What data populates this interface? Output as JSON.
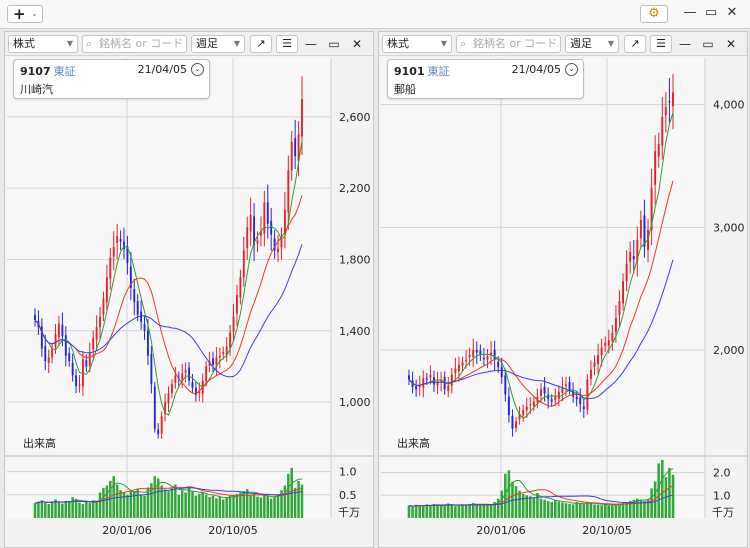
{
  "app": {
    "add_label": "+",
    "add_caret": "⌄",
    "settings_icon": "gear-icon",
    "minimize": "—",
    "maximize": "▭",
    "close": "✕"
  },
  "panels": [
    {
      "toolbar": {
        "type": "株式",
        "search_placeholder": "銘柄名 or コード",
        "period": "週足",
        "expand": "↗",
        "menu": "☰",
        "minimize": "—",
        "maximize": "▭",
        "close": "✕"
      },
      "info": {
        "code": "9107",
        "exchange": "東証",
        "date": "21/04/05",
        "name": "川崎汽"
      },
      "volume_label": "出来高",
      "volume_unit": "千万"
    },
    {
      "toolbar": {
        "type": "株式",
        "search_placeholder": "銘柄名 or コード",
        "period": "週足",
        "expand": "↗",
        "menu": "☰",
        "minimize": "—",
        "maximize": "▭",
        "close": "✕"
      },
      "info": {
        "code": "9101",
        "exchange": "東証",
        "date": "21/04/05",
        "name": "郵船"
      },
      "volume_label": "出来高",
      "volume_unit": "千万"
    }
  ],
  "chart_data": [
    {
      "type": "candlestick",
      "stock_code": "9107",
      "name": "川崎汽",
      "period": "weekly",
      "date_ticks": [
        "20/01/06",
        "20/10/05"
      ],
      "y_ticks": [
        1000,
        1400,
        1800,
        2200,
        2600
      ],
      "ylim": [
        720,
        2930
      ],
      "volume_ticks": [
        0.5,
        1.0
      ],
      "volume_ylim": [
        0,
        1.25
      ],
      "volume_unit": "千万",
      "up_color": "#e8202a",
      "down_color": "#2326d8",
      "ma_colors": [
        "#2f9e2f",
        "#e83a2a",
        "#3d3ddb"
      ],
      "closes": [
        1460,
        1420,
        1300,
        1230,
        1250,
        1300,
        1380,
        1440,
        1370,
        1260,
        1230,
        1150,
        1090,
        1100,
        1240,
        1200,
        1280,
        1360,
        1420,
        1480,
        1580,
        1700,
        1810,
        1870,
        1930,
        1900,
        1860,
        1780,
        1640,
        1560,
        1490,
        1450,
        1400,
        1260,
        1100,
        850,
        820,
        920,
        1000,
        1050,
        1100,
        1150,
        1130,
        1160,
        1180,
        1120,
        1080,
        1040,
        1060,
        1120,
        1200,
        1230,
        1210,
        1250,
        1260,
        1280,
        1310,
        1390,
        1480,
        1600,
        1700,
        1850,
        1980,
        2050,
        1880,
        1910,
        1960,
        2120,
        2000,
        1940,
        1850,
        1860,
        1920,
        2080,
        2300,
        2460,
        2380,
        2500,
        2700
      ],
      "volumes": [
        0.32,
        0.35,
        0.38,
        0.33,
        0.3,
        0.36,
        0.4,
        0.34,
        0.31,
        0.37,
        0.35,
        0.45,
        0.41,
        0.33,
        0.3,
        0.35,
        0.32,
        0.38,
        0.36,
        0.55,
        0.65,
        0.7,
        0.8,
        0.9,
        0.72,
        0.6,
        0.55,
        0.5,
        0.6,
        0.58,
        0.62,
        0.5,
        0.48,
        0.66,
        0.75,
        0.9,
        0.85,
        0.7,
        0.62,
        0.58,
        0.66,
        0.72,
        0.5,
        0.6,
        0.55,
        0.65,
        0.58,
        0.48,
        0.52,
        0.55,
        0.5,
        0.45,
        0.48,
        0.42,
        0.46,
        0.4,
        0.44,
        0.48,
        0.5,
        0.52,
        0.55,
        0.58,
        0.62,
        0.5,
        0.52,
        0.46,
        0.44,
        0.5,
        0.48,
        0.42,
        0.46,
        0.5,
        0.6,
        0.7,
        0.95,
        1.08,
        0.65,
        0.8,
        0.72
      ]
    },
    {
      "type": "candlestick",
      "stock_code": "9101",
      "name": "郵船",
      "period": "weekly",
      "date_ticks": [
        "20/01/06",
        "20/10/05"
      ],
      "y_ticks": [
        2000,
        3000,
        4000
      ],
      "ylim": [
        1170,
        4380
      ],
      "volume_ticks": [
        1.0,
        2.0
      ],
      "volume_ylim": [
        0,
        2.55
      ],
      "volume_unit": "千万",
      "up_color": "#e8202a",
      "down_color": "#2326d8",
      "ma_colors": [
        "#2f9e2f",
        "#e83a2a",
        "#3d3ddb"
      ],
      "closes": [
        1760,
        1700,
        1680,
        1710,
        1770,
        1760,
        1800,
        1720,
        1740,
        1760,
        1680,
        1710,
        1800,
        1850,
        1880,
        1900,
        1920,
        1960,
        2000,
        1980,
        1960,
        1930,
        1950,
        1980,
        1920,
        1860,
        1780,
        1640,
        1470,
        1360,
        1420,
        1480,
        1510,
        1540,
        1560,
        1580,
        1620,
        1680,
        1650,
        1600,
        1580,
        1620,
        1660,
        1700,
        1720,
        1680,
        1620,
        1600,
        1560,
        1520,
        1760,
        1840,
        1900,
        1960,
        2020,
        2060,
        2080,
        2140,
        2260,
        2400,
        2560,
        2700,
        2800,
        2740,
        2900,
        3060,
        2840,
        2980,
        3320,
        3620,
        3680,
        3900,
        3980,
        4020,
        4100
      ],
      "volumes": [
        0.55,
        0.5,
        0.58,
        0.52,
        0.56,
        0.6,
        0.54,
        0.62,
        0.58,
        0.55,
        0.6,
        0.64,
        0.58,
        0.52,
        0.55,
        0.6,
        0.58,
        0.62,
        0.66,
        0.6,
        0.55,
        0.58,
        0.62,
        0.6,
        0.7,
        0.85,
        1.2,
        1.95,
        2.1,
        1.6,
        1.4,
        1.2,
        1.05,
        1.0,
        0.95,
        0.9,
        1.1,
        0.85,
        0.8,
        0.75,
        0.7,
        0.78,
        0.72,
        0.68,
        0.65,
        0.62,
        0.6,
        0.7,
        0.66,
        0.62,
        0.68,
        0.64,
        0.6,
        0.58,
        0.56,
        0.6,
        0.58,
        0.55,
        0.6,
        0.62,
        0.66,
        0.7,
        0.75,
        0.8,
        0.85,
        0.8,
        0.75,
        0.82,
        1.3,
        1.6,
        2.4,
        2.55,
        1.8,
        2.2,
        1.9
      ]
    }
  ]
}
